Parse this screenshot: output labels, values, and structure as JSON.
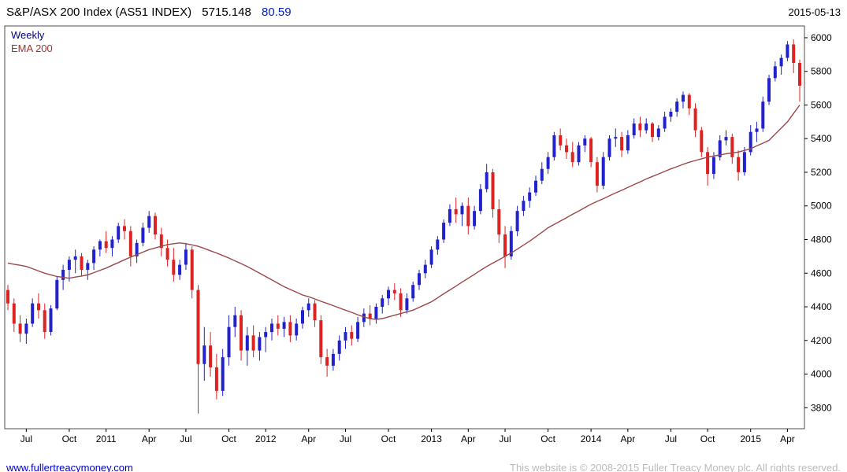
{
  "header": {
    "title": "S&P/ASX 200 Index (AS51 INDEX)",
    "last_price": "5715.148",
    "change": "80.59",
    "date": "2015-05-13"
  },
  "legend": {
    "timeframe": "Weekly",
    "overlay": "EMA 200"
  },
  "footer": {
    "link": "www.fullertreacymoney.com",
    "copyright": "This website is © 2008-2015 Fuller Treacy Money plc. All rights reserved."
  },
  "colors": {
    "up": "#2222cc",
    "down": "#dd2222",
    "ema": "#9c4848",
    "weekly_label": "#000080",
    "ema_label": "#993333",
    "change": "#0022cc",
    "link": "#0000cc",
    "copyright": "#bbbbbb",
    "axis_text": "#000000",
    "border": "#4d4d4d"
  },
  "chart_data": {
    "type": "candlestick",
    "title": "S&P/ASX 200 Index (AS51 INDEX) weekly candles with 200-period EMA overlay",
    "series_name": "S&P/ASX 200",
    "overlay_name": "EMA 200",
    "interval": "weekly (approximated as ~2-week bars), mid-2010 to 2015-05-13",
    "grid": false,
    "y_axis_side": "right",
    "legend_position": "top-left",
    "ylim": [
      3675,
      6070
    ],
    "y_ticks": [
      3800,
      4000,
      4200,
      4400,
      4600,
      4800,
      5000,
      5200,
      5400,
      5600,
      5800,
      6000
    ],
    "x_ticks": [
      {
        "index": 3,
        "label": "Jul"
      },
      {
        "index": 10,
        "label": "Oct"
      },
      {
        "index": 16,
        "label": "2011"
      },
      {
        "index": 23,
        "label": "Apr"
      },
      {
        "index": 29,
        "label": "Jul"
      },
      {
        "index": 36,
        "label": "Oct"
      },
      {
        "index": 42,
        "label": "2012"
      },
      {
        "index": 49,
        "label": "Apr"
      },
      {
        "index": 55,
        "label": "Jul"
      },
      {
        "index": 62,
        "label": "Oct"
      },
      {
        "index": 69,
        "label": "2013"
      },
      {
        "index": 75,
        "label": "Apr"
      },
      {
        "index": 81,
        "label": "Jul"
      },
      {
        "index": 88,
        "label": "Oct"
      },
      {
        "index": 95,
        "label": "2014"
      },
      {
        "index": 101,
        "label": "Apr"
      },
      {
        "index": 108,
        "label": "Jul"
      },
      {
        "index": 114,
        "label": "Oct"
      },
      {
        "index": 121,
        "label": "2015"
      },
      {
        "index": 127,
        "label": "Apr"
      }
    ],
    "last": {
      "value": 5715.148,
      "change": 80.59,
      "date": "2015-05-13"
    },
    "candles": [
      [
        4500,
        4530,
        4380,
        4420
      ],
      [
        4420,
        4450,
        4250,
        4300
      ],
      [
        4300,
        4350,
        4190,
        4240
      ],
      [
        4240,
        4330,
        4180,
        4300
      ],
      [
        4300,
        4450,
        4280,
        4420
      ],
      [
        4420,
        4480,
        4330,
        4380
      ],
      [
        4380,
        4420,
        4210,
        4250
      ],
      [
        4250,
        4410,
        4230,
        4390
      ],
      [
        4390,
        4580,
        4380,
        4560
      ],
      [
        4560,
        4650,
        4500,
        4620
      ],
      [
        4620,
        4700,
        4550,
        4680
      ],
      [
        4680,
        4740,
        4600,
        4700
      ],
      [
        4700,
        4720,
        4580,
        4620
      ],
      [
        4620,
        4680,
        4560,
        4660
      ],
      [
        4660,
        4760,
        4620,
        4740
      ],
      [
        4740,
        4800,
        4700,
        4790
      ],
      [
        4790,
        4850,
        4720,
        4750
      ],
      [
        4750,
        4820,
        4700,
        4800
      ],
      [
        4800,
        4900,
        4780,
        4880
      ],
      [
        4880,
        4920,
        4800,
        4850
      ],
      [
        4850,
        4880,
        4640,
        4700
      ],
      [
        4700,
        4800,
        4660,
        4780
      ],
      [
        4780,
        4900,
        4760,
        4870
      ],
      [
        4870,
        4970,
        4840,
        4940
      ],
      [
        4940,
        4960,
        4800,
        4830
      ],
      [
        4830,
        4870,
        4700,
        4750
      ],
      [
        4750,
        4800,
        4640,
        4680
      ],
      [
        4680,
        4750,
        4550,
        4590
      ],
      [
        4590,
        4680,
        4560,
        4650
      ],
      [
        4650,
        4780,
        4620,
        4740
      ],
      [
        4740,
        4760,
        4450,
        4500
      ],
      [
        4500,
        4530,
        3765,
        4060
      ],
      [
        4060,
        4280,
        3960,
        4170
      ],
      [
        4170,
        4250,
        3985,
        4040
      ],
      [
        4040,
        4120,
        3850,
        3900
      ],
      [
        3900,
        4150,
        3870,
        4100
      ],
      [
        4100,
        4350,
        4050,
        4280
      ],
      [
        4280,
        4400,
        4220,
        4350
      ],
      [
        4350,
        4380,
        4080,
        4140
      ],
      [
        4140,
        4280,
        4050,
        4230
      ],
      [
        4230,
        4290,
        4100,
        4140
      ],
      [
        4140,
        4250,
        4080,
        4220
      ],
      [
        4220,
        4280,
        4130,
        4250
      ],
      [
        4250,
        4330,
        4200,
        4300
      ],
      [
        4300,
        4350,
        4230,
        4270
      ],
      [
        4270,
        4340,
        4220,
        4310
      ],
      [
        4310,
        4350,
        4190,
        4230
      ],
      [
        4230,
        4330,
        4200,
        4300
      ],
      [
        4300,
        4400,
        4270,
        4380
      ],
      [
        4380,
        4450,
        4340,
        4420
      ],
      [
        4420,
        4440,
        4280,
        4320
      ],
      [
        4320,
        4350,
        4060,
        4100
      ],
      [
        4100,
        4150,
        3985,
        4050
      ],
      [
        4050,
        4150,
        4020,
        4120
      ],
      [
        4120,
        4230,
        4080,
        4200
      ],
      [
        4200,
        4280,
        4150,
        4250
      ],
      [
        4250,
        4290,
        4170,
        4210
      ],
      [
        4210,
        4340,
        4190,
        4310
      ],
      [
        4310,
        4390,
        4280,
        4360
      ],
      [
        4360,
        4410,
        4290,
        4330
      ],
      [
        4330,
        4420,
        4300,
        4400
      ],
      [
        4400,
        4470,
        4360,
        4450
      ],
      [
        4450,
        4520,
        4410,
        4500
      ],
      [
        4500,
        4540,
        4440,
        4480
      ],
      [
        4480,
        4510,
        4340,
        4380
      ],
      [
        4380,
        4480,
        4360,
        4450
      ],
      [
        4450,
        4550,
        4430,
        4530
      ],
      [
        4530,
        4620,
        4500,
        4600
      ],
      [
        4600,
        4680,
        4570,
        4650
      ],
      [
        4650,
        4760,
        4630,
        4740
      ],
      [
        4740,
        4820,
        4710,
        4800
      ],
      [
        4800,
        4920,
        4780,
        4900
      ],
      [
        4900,
        5010,
        4880,
        4980
      ],
      [
        4980,
        5050,
        4900,
        4950
      ],
      [
        4950,
        5020,
        4880,
        5000
      ],
      [
        5000,
        5050,
        4830,
        4880
      ],
      [
        4880,
        5000,
        4860,
        4970
      ],
      [
        4970,
        5130,
        4950,
        5100
      ],
      [
        5100,
        5250,
        5080,
        5200
      ],
      [
        5200,
        5220,
        4930,
        4980
      ],
      [
        4980,
        5040,
        4780,
        4830
      ],
      [
        4830,
        4880,
        4630,
        4700
      ],
      [
        4700,
        4880,
        4680,
        4850
      ],
      [
        4850,
        5000,
        4820,
        4970
      ],
      [
        4970,
        5060,
        4940,
        5030
      ],
      [
        5030,
        5110,
        4990,
        5080
      ],
      [
        5080,
        5180,
        5060,
        5150
      ],
      [
        5150,
        5260,
        5130,
        5220
      ],
      [
        5220,
        5320,
        5190,
        5290
      ],
      [
        5290,
        5440,
        5270,
        5420
      ],
      [
        5420,
        5460,
        5330,
        5360
      ],
      [
        5360,
        5400,
        5280,
        5320
      ],
      [
        5320,
        5380,
        5230,
        5260
      ],
      [
        5260,
        5380,
        5240,
        5360
      ],
      [
        5360,
        5420,
        5320,
        5400
      ],
      [
        5400,
        5410,
        5230,
        5260
      ],
      [
        5260,
        5290,
        5080,
        5120
      ],
      [
        5120,
        5320,
        5100,
        5290
      ],
      [
        5290,
        5420,
        5270,
        5400
      ],
      [
        5400,
        5460,
        5350,
        5410
      ],
      [
        5410,
        5440,
        5290,
        5330
      ],
      [
        5330,
        5450,
        5310,
        5420
      ],
      [
        5420,
        5520,
        5400,
        5490
      ],
      [
        5490,
        5530,
        5410,
        5450
      ],
      [
        5450,
        5520,
        5430,
        5490
      ],
      [
        5490,
        5500,
        5380,
        5410
      ],
      [
        5410,
        5480,
        5390,
        5460
      ],
      [
        5460,
        5560,
        5440,
        5530
      ],
      [
        5530,
        5580,
        5500,
        5560
      ],
      [
        5560,
        5640,
        5530,
        5620
      ],
      [
        5620,
        5680,
        5580,
        5660
      ],
      [
        5660,
        5670,
        5540,
        5580
      ],
      [
        5580,
        5610,
        5410,
        5450
      ],
      [
        5450,
        5470,
        5290,
        5320
      ],
      [
        5320,
        5350,
        5120,
        5190
      ],
      [
        5190,
        5320,
        5160,
        5290
      ],
      [
        5290,
        5420,
        5270,
        5390
      ],
      [
        5390,
        5450,
        5360,
        5410
      ],
      [
        5410,
        5430,
        5250,
        5290
      ],
      [
        5290,
        5330,
        5150,
        5200
      ],
      [
        5200,
        5350,
        5180,
        5320
      ],
      [
        5320,
        5480,
        5300,
        5440
      ],
      [
        5440,
        5500,
        5380,
        5460
      ],
      [
        5460,
        5650,
        5440,
        5620
      ],
      [
        5620,
        5780,
        5600,
        5760
      ],
      [
        5760,
        5860,
        5740,
        5830
      ],
      [
        5830,
        5900,
        5780,
        5880
      ],
      [
        5880,
        5980,
        5860,
        5960
      ],
      [
        5960,
        5990,
        5790,
        5850
      ],
      [
        5850,
        5870,
        5620,
        5715
      ]
    ],
    "ema_200": [
      4660,
      4653,
      4647,
      4640,
      4627,
      4613,
      4600,
      4590,
      4580,
      4575,
      4570,
      4577,
      4583,
      4590,
      4603,
      4617,
      4630,
      4647,
      4663,
      4680,
      4695,
      4710,
      4725,
      4740,
      4750,
      4760,
      4770,
      4775,
      4780,
      4775,
      4768,
      4760,
      4747,
      4733,
      4720,
      4705,
      4690,
      4673,
      4657,
      4640,
      4620,
      4600,
      4580,
      4560,
      4540,
      4520,
      4503,
      4487,
      4470,
      4460,
      4447,
      4433,
      4420,
      4407,
      4393,
      4380,
      4367,
      4353,
      4340,
      4330,
      4325,
      4330,
      4340,
      4350,
      4360,
      4370,
      4380,
      4397,
      4413,
      4430,
      4453,
      4477,
      4500,
      4523,
      4547,
      4570,
      4593,
      4617,
      4640,
      4660,
      4680,
      4700,
      4720,
      4743,
      4767,
      4790,
      4817,
      4843,
      4870,
      4890,
      4910,
      4930,
      4950,
      4970,
      4990,
      5010,
      5027,
      5043,
      5060,
      5077,
      5093,
      5110,
      5127,
      5143,
      5160,
      5175,
      5190,
      5205,
      5220,
      5233,
      5247,
      5260,
      5270,
      5280,
      5290,
      5297,
      5303,
      5310,
      5315,
      5320,
      5330,
      5340,
      5357,
      5373,
      5390,
      5427,
      5463,
      5500,
      5550,
      5600
    ]
  }
}
